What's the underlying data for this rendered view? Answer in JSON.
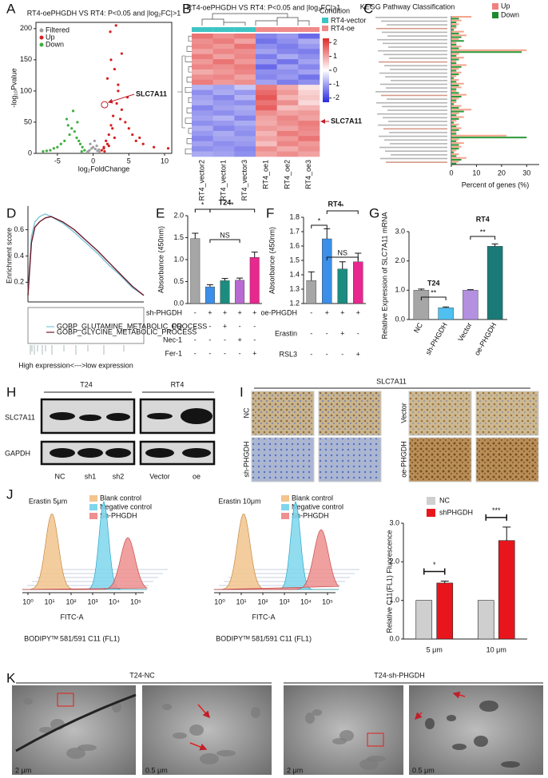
{
  "panel_letters": [
    "A",
    "B",
    "C",
    "D",
    "E",
    "F",
    "G",
    "H",
    "I",
    "J",
    "K"
  ],
  "chart_data": [
    {
      "type": "scatter",
      "title": "RT4-oePHGDH VS RT4: P<0.05 and |log₂FC|>1",
      "x_label": "log₂FoldChange",
      "y_label": "-log₁₀Pvalue",
      "xlim": [
        -8,
        11
      ],
      "ylim": [
        0,
        210
      ],
      "xticks": [
        -5,
        0,
        5,
        10
      ],
      "yticks": [
        0,
        50,
        100,
        150,
        200
      ],
      "series": [
        {
          "name": "Filtered",
          "color": "#9e9e9e",
          "x": [
            -0.8,
            -0.5,
            -0.2,
            0,
            0.3,
            0.6,
            0.9,
            -0.4,
            0.2,
            0.5,
            -0.7,
            0.8
          ],
          "y": [
            2,
            5,
            8,
            10,
            7,
            4,
            2,
            15,
            20,
            12,
            3,
            6
          ]
        },
        {
          "name": "Up",
          "color": "#d62020",
          "x": [
            1.2,
            1.5,
            1.8,
            2.0,
            2.2,
            2.5,
            2.8,
            3.0,
            3.3,
            3.5,
            4.0,
            4.5,
            5.0,
            5.5,
            6.0,
            7.0,
            8.5,
            2.0,
            2.5,
            3.0,
            3.5,
            4.0,
            1.5,
            2.2,
            3.2,
            4.8,
            6.5,
            2.7,
            3.8,
            10.5,
            1.6,
            2.4
          ],
          "y": [
            5,
            10,
            20,
            15,
            30,
            45,
            60,
            25,
            80,
            100,
            70,
            50,
            40,
            30,
            20,
            15,
            10,
            120,
            150,
            135,
            110,
            160,
            8,
            12,
            205,
            90,
            25,
            40,
            55,
            8,
            3,
            195
          ]
        },
        {
          "name": "Down",
          "color": "#3fae3f",
          "x": [
            -1.2,
            -1.5,
            -1.8,
            -2,
            -2.3,
            -2.6,
            -3,
            -3.3,
            -3.7,
            -4,
            -4.5,
            -5,
            -5.5,
            -6,
            -6.5,
            -7,
            -2.2,
            -2.8,
            -3.5,
            -1.6
          ],
          "y": [
            5,
            10,
            15,
            20,
            25,
            35,
            40,
            30,
            55,
            20,
            15,
            10,
            8,
            5,
            4,
            3,
            50,
            68,
            45,
            3
          ]
        }
      ],
      "annotation": {
        "text": "SLC7A11",
        "x": 1.6,
        "y": 78
      }
    },
    {
      "type": "heatmap",
      "title": "RT4-oePHGDH VS RT4: P<0.05 and |log₂FC|>1",
      "columns": [
        "RT4_vector2",
        "RT4_vector1",
        "RT4_vector3",
        "RT4_oe1",
        "RT4_oe2",
        "RT4_oe3"
      ],
      "legend_title": "Condition",
      "conditions": [
        {
          "name": "RT4-vector",
          "color": "#3ec4c4"
        },
        {
          "name": "RT4-oe",
          "color": "#f08a8a"
        }
      ],
      "zlim": [
        -2.3,
        2.3
      ],
      "zticks": [
        2,
        1,
        0,
        -1,
        -2
      ],
      "annotation": "SLC7A11",
      "values": [
        [
          1.5,
          1.2,
          1.4,
          -1.3,
          -1.1,
          -1.6
        ],
        [
          1.2,
          1.4,
          1.0,
          -1.5,
          -1.2,
          -0.9
        ],
        [
          1.3,
          1.1,
          1.5,
          -1.2,
          -1.4,
          -1.1
        ],
        [
          1.0,
          1.3,
          1.2,
          -1.0,
          -1.3,
          -1.4
        ],
        [
          1.4,
          1.0,
          1.3,
          -1.4,
          -0.9,
          -1.2
        ],
        [
          1.1,
          1.5,
          1.1,
          -1.1,
          -1.5,
          -1.0
        ],
        [
          1.3,
          1.2,
          1.4,
          -1.6,
          -1.0,
          -1.3
        ],
        [
          0.9,
          1.1,
          1.3,
          -1.2,
          -1.2,
          -1.0
        ],
        [
          1.2,
          1.3,
          1.0,
          -1.3,
          -1.1,
          -1.5
        ],
        [
          1.4,
          1.1,
          1.2,
          -1.0,
          -1.4,
          -1.2
        ],
        [
          -0.8,
          -1.0,
          -0.6,
          1.4,
          0.9,
          0.3
        ],
        [
          -1.2,
          -0.9,
          -1.1,
          1.6,
          1.1,
          0.5
        ],
        [
          -1.0,
          -1.3,
          -0.8,
          1.8,
          0.8,
          0.6
        ],
        [
          -0.9,
          -1.1,
          -1.2,
          1.5,
          1.2,
          0.4
        ],
        [
          -1.3,
          -1.0,
          -0.9,
          1.7,
          0.7,
          0.8
        ],
        [
          -1.1,
          -1.2,
          -1.0,
          1.2,
          1.0,
          1.1
        ],
        [
          -1.0,
          -0.8,
          -1.3,
          1.0,
          1.3,
          1.0
        ],
        [
          -1.2,
          -1.1,
          -0.9,
          0.9,
          1.2,
          1.4
        ],
        [
          -0.9,
          -1.3,
          -1.1,
          1.1,
          1.0,
          1.3
        ],
        [
          -1.1,
          -0.9,
          -1.2,
          0.8,
          1.4,
          1.2
        ],
        [
          -1.3,
          -1.0,
          -1.0,
          1.0,
          1.1,
          1.5
        ],
        [
          -1.0,
          -1.2,
          -1.1,
          0.7,
          1.3,
          1.1
        ],
        [
          -1.2,
          -1.1,
          -1.3,
          1.2,
          0.9,
          1.2
        ],
        [
          -0.9,
          -1.0,
          -1.2,
          1.0,
          1.2,
          1.0
        ]
      ]
    },
    {
      "type": "hbar",
      "title": "KEGG Pathway Classification",
      "x_label": "Percent of genes (%)",
      "xlim": [
        0,
        35
      ],
      "xticks": [
        0,
        10,
        20,
        30
      ],
      "categories": [
        null,
        null,
        null,
        null,
        null,
        null,
        null,
        null,
        null,
        null,
        null,
        null,
        null,
        null,
        null,
        null,
        null,
        null,
        null,
        null,
        null,
        null,
        null,
        null,
        null,
        null,
        null,
        null,
        null,
        null,
        null,
        null,
        null,
        null,
        null,
        null,
        null,
        null,
        null,
        null
      ],
      "series": [
        {
          "name": "Up",
          "color": "#f4a48c",
          "values": [
            8,
            4,
            3,
            2,
            5,
            6,
            3,
            2,
            4,
            30,
            3,
            5,
            2,
            6,
            3,
            4,
            2,
            3,
            5,
            4,
            2,
            6,
            3,
            2,
            4,
            8,
            3,
            5,
            2,
            3,
            4,
            2,
            22,
            3,
            5,
            4,
            2,
            3,
            6,
            3
          ]
        },
        {
          "name": "Down",
          "color": "#2e9a3c",
          "values": [
            3,
            2,
            2,
            1,
            3,
            4,
            5,
            2,
            3,
            28,
            2,
            3,
            2,
            4,
            2,
            3,
            1,
            2,
            3,
            2,
            3,
            4,
            2,
            1,
            3,
            5,
            2,
            3,
            1,
            2,
            3,
            2,
            30,
            2,
            3,
            3,
            1,
            2,
            4,
            2
          ]
        }
      ]
    },
    {
      "type": "line",
      "y_label": "Enrichment score",
      "x_label": "High expression<--->low expression",
      "ylim": [
        0.05,
        0.78
      ],
      "yticks": [
        0.2,
        0.4,
        0.6
      ],
      "xlim": [
        0,
        100
      ],
      "x": [
        0,
        3,
        6,
        10,
        15,
        20,
        30,
        40,
        50,
        60,
        70,
        80,
        90,
        100
      ],
      "series": [
        {
          "name": "GOBP_GLUTAMINE_METABOLIC_PROCESS",
          "color": "#7cc6d8",
          "values": [
            0.1,
            0.55,
            0.66,
            0.7,
            0.72,
            0.7,
            0.65,
            0.58,
            0.5,
            0.42,
            0.33,
            0.25,
            0.16,
            0.1
          ]
        },
        {
          "name": "GOBP_GLYCINE_METABOLIC_PROCESS",
          "color": "#6b1a2a",
          "values": [
            0.1,
            0.5,
            0.62,
            0.66,
            0.69,
            0.7,
            0.66,
            0.6,
            0.52,
            0.44,
            0.35,
            0.26,
            0.17,
            0.1
          ]
        }
      ]
    },
    {
      "type": "bar",
      "title": "T24",
      "y_label": "Absorbance (450nm)",
      "ylim": [
        0,
        2
      ],
      "yticks": [
        {
          "value": 0,
          "label": "0.0"
        },
        {
          "value": 0.5,
          "label": "0.5"
        },
        {
          "value": 1,
          "label": "1.0"
        },
        {
          "value": 1.5,
          "label": "1.5"
        },
        {
          "value": 2,
          "label": "2.0"
        }
      ],
      "values": [
        1.48,
        0.38,
        0.52,
        0.53,
        1.05
      ],
      "errors": [
        0.12,
        0.05,
        0.05,
        0.05,
        0.12
      ],
      "colors": [
        "#a6a6a6",
        "#3b8fe8",
        "#1c8c80",
        "#b96ad2",
        "#e8278f"
      ],
      "treatment_rows": [
        {
          "label": "sh-PHGDH",
          "signs": [
            "-",
            "+",
            "+",
            "+",
            "+"
          ]
        },
        {
          "label": "CQ",
          "signs": [
            "-",
            "-",
            "+",
            "-",
            "-"
          ]
        },
        {
          "label": "Nec-1",
          "signs": [
            "-",
            "-",
            "-",
            "+",
            "-"
          ]
        },
        {
          "label": "Fer-1",
          "signs": [
            "-",
            "-",
            "-",
            "-",
            "+"
          ]
        }
      ],
      "annotations": [
        "*",
        "*",
        "NS"
      ]
    },
    {
      "type": "bar",
      "title": "RT4",
      "y_label": "Absorbance (450nm)",
      "ylim": [
        1.2,
        1.8
      ],
      "yticks": [
        1.2,
        1.3,
        1.4,
        1.5,
        1.6,
        1.7,
        1.8
      ],
      "values": [
        1.36,
        1.65,
        1.44,
        1.49
      ],
      "errors": [
        0.06,
        0.07,
        0.05,
        0.06
      ],
      "colors": [
        "#a6a6a6",
        "#3b8fe8",
        "#1c8c80",
        "#e8278f"
      ],
      "treatment_rows": [
        {
          "label": "oe-PHGDH",
          "signs": [
            "-",
            "+",
            "+",
            "+"
          ]
        },
        {
          "label": "Erastin",
          "signs": [
            "-",
            "-",
            "+",
            "-"
          ]
        },
        {
          "label": "RSL3",
          "signs": [
            "-",
            "-",
            "-",
            "+"
          ]
        }
      ],
      "annotations": [
        "*",
        "*",
        "NS"
      ]
    },
    {
      "type": "bar",
      "y_label": "Relative Expression of SLC7A11 mRNA",
      "ylim": [
        0,
        3
      ],
      "yticks": [
        {
          "value": 0,
          "label": "0.0"
        },
        {
          "value": 1,
          "label": "1.0"
        },
        {
          "value": 2,
          "label": "2.0"
        },
        {
          "value": 3,
          "label": "3.0"
        }
      ],
      "categories": [
        "NC",
        "sh-PHGDH",
        "Vector",
        "oe-PHGDH"
      ],
      "values": [
        1.0,
        0.4,
        1.0,
        2.5
      ],
      "errors": [
        0.04,
        0.03,
        0.02,
        0.08
      ],
      "colors": [
        "#a6a6a6",
        "#4fc0f0",
        "#b490e0",
        "#1a7a78"
      ],
      "group_labels": [
        "T24",
        "RT4"
      ],
      "annotations": [
        "**",
        "**"
      ]
    },
    {
      "type": "grouped_bar",
      "y_label": "Relative C11(FL1) Fluorescence",
      "ylim": [
        0,
        3
      ],
      "yticks": [
        {
          "value": 0,
          "label": "0.0"
        },
        {
          "value": 1,
          "label": "1.0"
        },
        {
          "value": 2,
          "label": "2.0"
        },
        {
          "value": 3,
          "label": "3.0"
        }
      ],
      "categories": [
        "5 μm",
        "10 μm"
      ],
      "series": [
        {
          "name": "NC",
          "color": "#cfcfcf",
          "values": [
            1,
            1
          ]
        },
        {
          "name": "shPHGDH",
          "color": "#e8161c",
          "values": [
            1.45,
            2.55
          ],
          "errors": [
            0.05,
            0.35
          ]
        }
      ],
      "annotations": [
        "*",
        "***"
      ]
    }
  ],
  "western": {
    "groups": [
      "T24",
      "RT4"
    ],
    "proteins": [
      "SLC7A11",
      "GAPDH"
    ],
    "lanes": [
      "NC",
      "sh1",
      "sh2",
      "Vector",
      "oe"
    ]
  },
  "ihc": {
    "title": "SLC7A11",
    "rows": [
      "NC",
      "sh-PHGDH",
      "Vector",
      "oe-PHGDH"
    ]
  },
  "flow": {
    "panels": [
      "Erastin 5μm",
      "Erastin 10μm"
    ],
    "legend": [
      "Blank control",
      "Negative control",
      "Sh-PHGDH"
    ],
    "x_label": "FITC-A",
    "x_tick_labels": [
      "10⁰",
      "10¹",
      "10²",
      "10³",
      "10⁴",
      "10⁵"
    ],
    "caption": "BODIPYᵀᴹ 581/591 C11 (FL1)"
  },
  "tem": {
    "titles": [
      "T24-NC",
      "T24-sh-PHGDH"
    ],
    "scale_labels": [
      "2 μm",
      "0.5 μm"
    ]
  }
}
